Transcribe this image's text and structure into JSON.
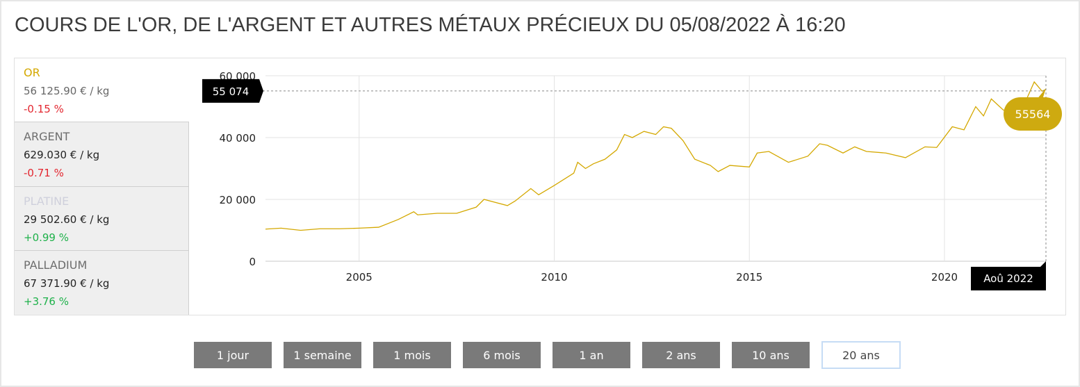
{
  "title": "COURS DE L'OR, DE L'ARGENT ET AUTRES MÉTAUX PRÉCIEUX DU 05/08/2022 À 16:20",
  "metals": [
    {
      "name": "OR",
      "price": "56 125.90 € / kg",
      "change": "-0.15 %",
      "name_color": "#d4a800",
      "trend": "neg",
      "active": true
    },
    {
      "name": "ARGENT",
      "price": "629.030 € / kg",
      "change": "-0.71 %",
      "name_color": "#6d6d6d",
      "trend": "neg",
      "active": false
    },
    {
      "name": "PLATINE",
      "price": "29 502.60 € / kg",
      "change": "+0.99 %",
      "name_color": "#cfd0dc",
      "trend": "pos",
      "active": false
    },
    {
      "name": "PALLADIUM",
      "price": "67 371.90 € / kg",
      "change": "+3.76 %",
      "name_color": "#6d6d6d",
      "trend": "pos",
      "active": false
    }
  ],
  "periods": [
    "1 jour",
    "1 semaine",
    "1 mois",
    "6 mois",
    "1 an",
    "2 ans",
    "10 ans",
    "20 ans"
  ],
  "active_period": "20 ans",
  "chart_data": {
    "type": "line",
    "line_color": "#d4a800",
    "ylim": [
      0,
      60000
    ],
    "y_ticks": [
      0,
      20000,
      40000,
      60000
    ],
    "y_tick_labels": [
      "0",
      "20 000",
      "40 000",
      "60 000"
    ],
    "x_ticks": [
      2005,
      2010,
      2015,
      2020
    ],
    "x_tick_labels": [
      "2005",
      "2010",
      "2015",
      "2020"
    ],
    "xlim": [
      2002.6,
      2022.6
    ],
    "grid": true,
    "crosshair_y_label": "55 074",
    "crosshair_x_label": "Aoû 2022",
    "point_tooltip": "55564",
    "series": [
      {
        "x": [
          2002.6,
          2003.0,
          2003.5,
          2004.0,
          2004.5,
          2005.0,
          2005.5,
          2006.0,
          2006.4,
          2006.5,
          2007.0,
          2007.5,
          2008.0,
          2008.2,
          2008.8,
          2009.0,
          2009.4,
          2009.6,
          2010.0,
          2010.5,
          2010.6,
          2010.8,
          2011.0,
          2011.3,
          2011.6,
          2011.8,
          2012.0,
          2012.3,
          2012.6,
          2012.8,
          2013.0,
          2013.3,
          2013.6,
          2014.0,
          2014.2,
          2014.5,
          2015.0,
          2015.2,
          2015.5,
          2016.0,
          2016.5,
          2016.8,
          2017.0,
          2017.4,
          2017.7,
          2018.0,
          2018.5,
          2019.0,
          2019.5,
          2019.8,
          2020.2,
          2020.5,
          2020.8,
          2021.0,
          2021.2,
          2021.5,
          2021.8,
          2022.0,
          2022.3,
          2022.5,
          2022.6
        ],
        "y": [
          10400,
          10700,
          10000,
          10500,
          10500,
          10700,
          11000,
          13500,
          16000,
          15000,
          15500,
          15500,
          17500,
          20000,
          18000,
          19500,
          23500,
          21500,
          24500,
          28500,
          32000,
          30000,
          31500,
          33000,
          36000,
          41000,
          40000,
          42000,
          41000,
          43500,
          43000,
          39000,
          33000,
          31000,
          29000,
          31000,
          30500,
          35000,
          35500,
          32000,
          34000,
          38000,
          37500,
          35000,
          37000,
          35500,
          35000,
          33500,
          37000,
          36800,
          43500,
          42500,
          50000,
          47000,
          52500,
          49000,
          47000,
          49500,
          58000,
          55000,
          55564
        ]
      }
    ]
  }
}
